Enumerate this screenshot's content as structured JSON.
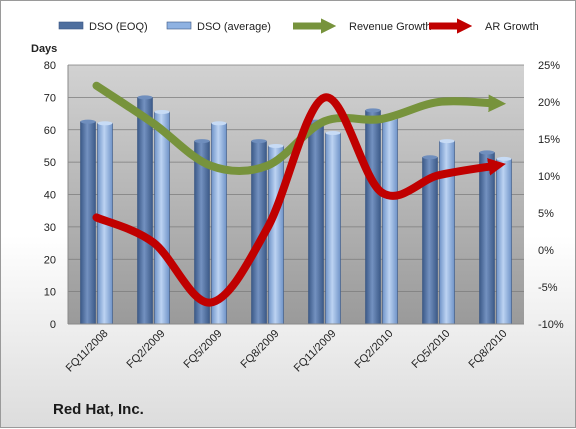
{
  "company": "Red Hat, Inc.",
  "chart_data": {
    "type": "bar",
    "title": "",
    "left_axis_title": "Days",
    "left_axis": {
      "min": 0,
      "max": 80,
      "step": 10
    },
    "right_axis": {
      "min": -10,
      "max": 25,
      "step": 5,
      "unit": "%"
    },
    "categories": [
      "FQ11/2008",
      "FQ2/2009",
      "FQ5/2009",
      "FQ8/2009",
      "FQ11/2009",
      "FQ2/2010",
      "FQ5/2010",
      "FQ8/2010"
    ],
    "series": [
      {
        "name": "DSO (EOQ)",
        "kind": "bar",
        "axis": "left",
        "color": "#4f6f9e",
        "values": [
          62.5,
          70,
          56.5,
          56.5,
          62.5,
          66,
          51.5,
          53
        ]
      },
      {
        "name": "DSO (average)",
        "kind": "bar",
        "axis": "left",
        "color": "#8fb2e2",
        "values": [
          62,
          65.5,
          62,
          55,
          59,
          63.5,
          56.5,
          51
        ]
      },
      {
        "name": "Revenue Growth",
        "kind": "line",
        "axis": "right",
        "color": "#77933c",
        "values": [
          22.2,
          17.1,
          11.4,
          11.4,
          17.4,
          17.7,
          20.0,
          19.8
        ]
      },
      {
        "name": "AR Growth",
        "kind": "line",
        "axis": "right",
        "color": "#c00000",
        "values": [
          4.4,
          1.0,
          -7.1,
          3.0,
          20.6,
          7.8,
          10.1,
          11.4
        ]
      }
    ],
    "legend": "top",
    "grid": true
  }
}
